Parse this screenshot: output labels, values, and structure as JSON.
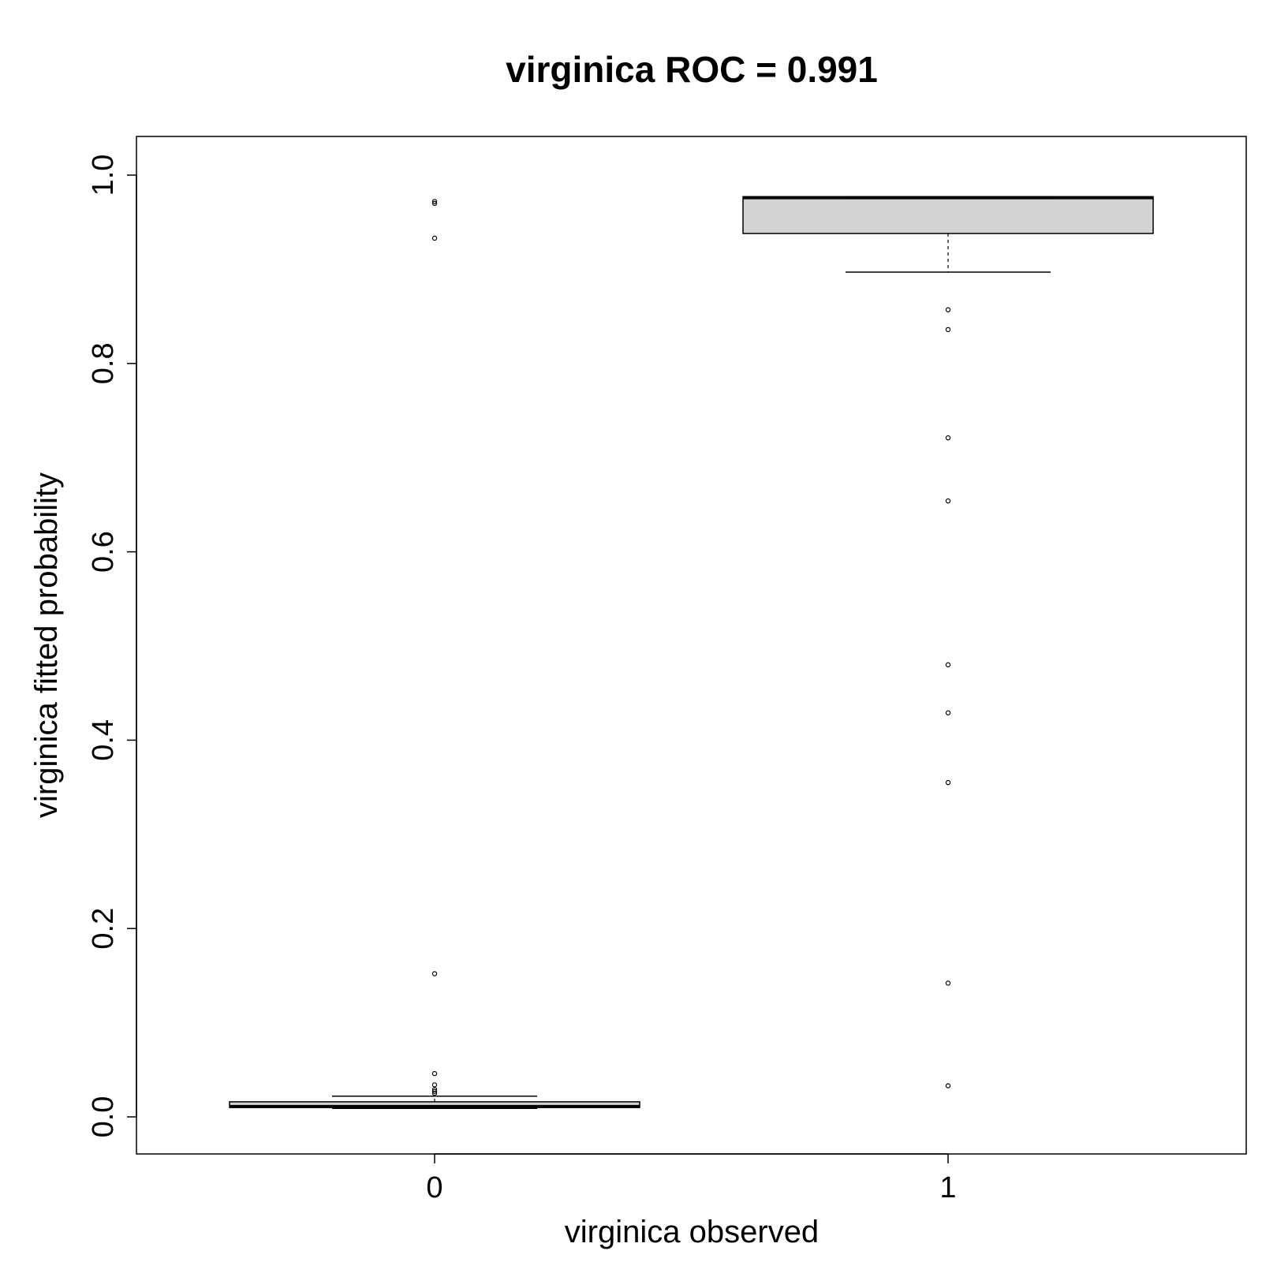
{
  "chart_data": {
    "type": "boxplot",
    "title": "virginica ROC = 0.991",
    "xlabel": "virginica observed",
    "ylabel": "virginica fitted probability",
    "categories": [
      "0",
      "1"
    ],
    "ylim": [
      -0.04,
      1.04
    ],
    "yticks": [
      0.0,
      0.2,
      0.4,
      0.6,
      0.8,
      1.0
    ],
    "ytick_labels": [
      "0.0",
      "0.2",
      "0.4",
      "0.6",
      "0.8",
      "1.0"
    ],
    "grid": false,
    "legend": "none",
    "box_fill": "#d3d3d3",
    "boxes": [
      {
        "category": "0",
        "whisker_low": 0.009,
        "q1": 0.01,
        "median": 0.011,
        "q3": 0.016,
        "whisker_high": 0.022,
        "outliers": [
          0.025,
          0.027,
          0.029,
          0.034,
          0.046,
          0.152,
          0.933,
          0.97,
          0.972
        ]
      },
      {
        "category": "1",
        "whisker_low": 0.897,
        "q1": 0.938,
        "median": 0.976,
        "q3": 0.977,
        "whisker_high": 0.977,
        "outliers": [
          0.857,
          0.836,
          0.721,
          0.654,
          0.48,
          0.429,
          0.355,
          0.142,
          0.033
        ]
      }
    ]
  }
}
